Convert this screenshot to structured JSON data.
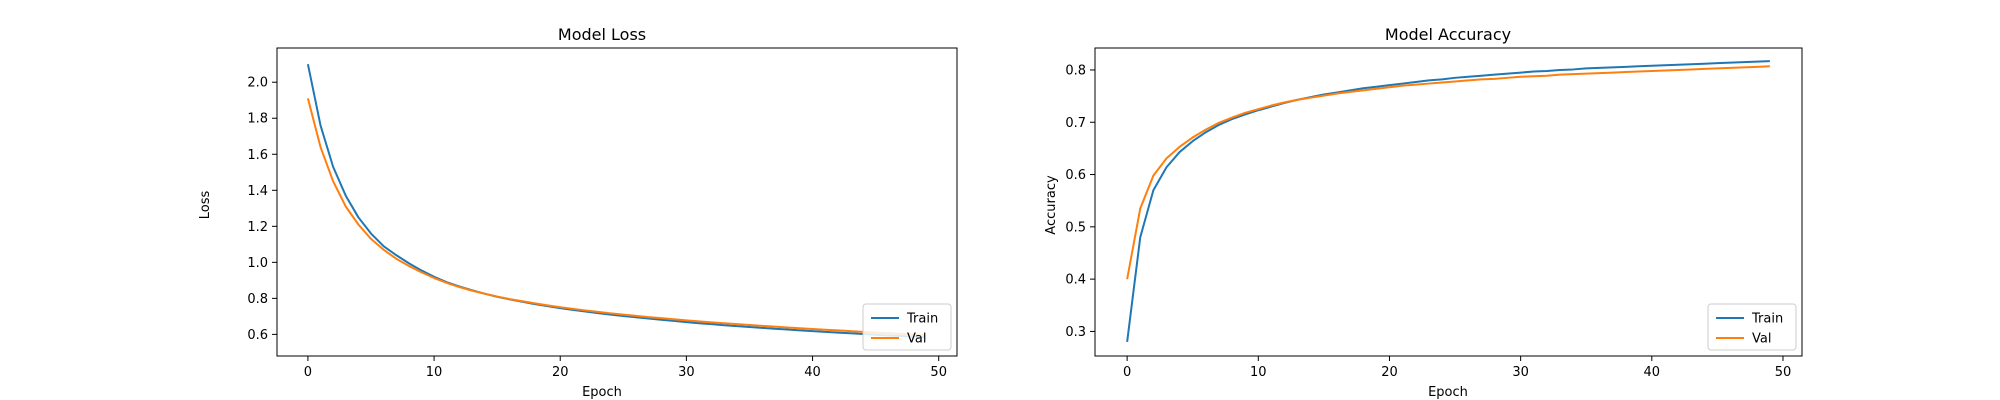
{
  "chart_data": [
    {
      "type": "line",
      "title": "Model Loss",
      "xlabel": "Epoch",
      "ylabel": "Loss",
      "xlim": [
        -2.45,
        51.45
      ],
      "ylim": [
        0.48,
        2.19
      ],
      "xticks": [
        0,
        10,
        20,
        30,
        40,
        50
      ],
      "yticks": [
        0.6,
        0.8,
        1.0,
        1.2,
        1.4,
        1.6,
        1.8,
        2.0
      ],
      "grid": false,
      "legend_position": "lower-right",
      "series": [
        {
          "name": "Train",
          "color": "#1f77b4",
          "x": [
            0,
            1,
            2,
            3,
            4,
            5,
            6,
            7,
            8,
            9,
            10,
            11,
            12,
            13,
            14,
            15,
            16,
            17,
            18,
            19,
            20,
            21,
            22,
            23,
            24,
            25,
            26,
            27,
            28,
            29,
            30,
            31,
            32,
            33,
            34,
            35,
            36,
            37,
            38,
            39,
            40,
            41,
            42,
            43,
            44,
            45,
            46,
            47,
            48,
            49
          ],
          "y": [
            2.1,
            1.76,
            1.53,
            1.37,
            1.25,
            1.16,
            1.09,
            1.04,
            0.995,
            0.955,
            0.92,
            0.89,
            0.866,
            0.845,
            0.826,
            0.809,
            0.794,
            0.781,
            0.768,
            0.757,
            0.746,
            0.736,
            0.727,
            0.718,
            0.71,
            0.702,
            0.695,
            0.688,
            0.681,
            0.675,
            0.668,
            0.662,
            0.657,
            0.651,
            0.646,
            0.641,
            0.636,
            0.631,
            0.627,
            0.622,
            0.618,
            0.614,
            0.61,
            0.606,
            0.602,
            0.598,
            0.594,
            0.591,
            0.587,
            0.584
          ]
        },
        {
          "name": "Val",
          "color": "#ff7f0e",
          "x": [
            0,
            1,
            2,
            3,
            4,
            5,
            6,
            7,
            8,
            9,
            10,
            11,
            12,
            13,
            14,
            15,
            16,
            17,
            18,
            19,
            20,
            21,
            22,
            23,
            24,
            25,
            26,
            27,
            28,
            29,
            30,
            31,
            32,
            33,
            34,
            35,
            36,
            37,
            38,
            39,
            40,
            41,
            42,
            43,
            44,
            45,
            46,
            47,
            48,
            49
          ],
          "y": [
            1.91,
            1.64,
            1.45,
            1.31,
            1.21,
            1.13,
            1.07,
            1.02,
            0.98,
            0.945,
            0.913,
            0.886,
            0.863,
            0.843,
            0.826,
            0.81,
            0.796,
            0.784,
            0.772,
            0.761,
            0.751,
            0.742,
            0.733,
            0.725,
            0.717,
            0.71,
            0.703,
            0.696,
            0.69,
            0.684,
            0.678,
            0.672,
            0.667,
            0.662,
            0.657,
            0.652,
            0.647,
            0.643,
            0.638,
            0.634,
            0.63,
            0.626,
            0.622,
            0.618,
            0.614,
            0.61,
            0.607,
            0.603,
            0.6,
            0.596
          ]
        }
      ]
    },
    {
      "type": "line",
      "title": "Model Accuracy",
      "xlabel": "Epoch",
      "ylabel": "Accuracy",
      "xlim": [
        -2.45,
        51.45
      ],
      "ylim": [
        0.253,
        0.842
      ],
      "xticks": [
        0,
        10,
        20,
        30,
        40,
        50
      ],
      "yticks": [
        0.3,
        0.4,
        0.5,
        0.6,
        0.7,
        0.8
      ],
      "grid": false,
      "legend_position": "lower-right",
      "series": [
        {
          "name": "Train",
          "color": "#1f77b4",
          "x": [
            0,
            1,
            2,
            3,
            4,
            5,
            6,
            7,
            8,
            9,
            10,
            11,
            12,
            13,
            14,
            15,
            16,
            17,
            18,
            19,
            20,
            21,
            22,
            23,
            24,
            25,
            26,
            27,
            28,
            29,
            30,
            31,
            32,
            33,
            34,
            35,
            36,
            37,
            38,
            39,
            40,
            41,
            42,
            43,
            44,
            45,
            46,
            47,
            48,
            49
          ],
          "y": [
            0.28,
            0.48,
            0.57,
            0.614,
            0.643,
            0.664,
            0.681,
            0.695,
            0.706,
            0.715,
            0.723,
            0.73,
            0.737,
            0.743,
            0.748,
            0.753,
            0.757,
            0.761,
            0.765,
            0.768,
            0.771,
            0.774,
            0.777,
            0.78,
            0.782,
            0.785,
            0.787,
            0.789,
            0.791,
            0.793,
            0.795,
            0.797,
            0.798,
            0.8,
            0.801,
            0.803,
            0.804,
            0.805,
            0.806,
            0.807,
            0.808,
            0.809,
            0.81,
            0.811,
            0.812,
            0.813,
            0.814,
            0.815,
            0.816,
            0.817
          ]
        },
        {
          "name": "Val",
          "color": "#ff7f0e",
          "x": [
            0,
            1,
            2,
            3,
            4,
            5,
            6,
            7,
            8,
            9,
            10,
            11,
            12,
            13,
            14,
            15,
            16,
            17,
            18,
            19,
            20,
            21,
            22,
            23,
            24,
            25,
            26,
            27,
            28,
            29,
            30,
            31,
            32,
            33,
            34,
            35,
            36,
            37,
            38,
            39,
            40,
            41,
            42,
            43,
            44,
            45,
            46,
            47,
            48,
            49
          ],
          "y": [
            0.4,
            0.535,
            0.598,
            0.631,
            0.653,
            0.671,
            0.686,
            0.699,
            0.709,
            0.718,
            0.725,
            0.732,
            0.738,
            0.743,
            0.747,
            0.751,
            0.755,
            0.758,
            0.761,
            0.764,
            0.767,
            0.77,
            0.772,
            0.774,
            0.776,
            0.778,
            0.78,
            0.782,
            0.783,
            0.785,
            0.787,
            0.788,
            0.789,
            0.791,
            0.792,
            0.793,
            0.794,
            0.795,
            0.796,
            0.797,
            0.798,
            0.799,
            0.8,
            0.801,
            0.802,
            0.803,
            0.804,
            0.805,
            0.806,
            0.807
          ]
        }
      ]
    }
  ]
}
